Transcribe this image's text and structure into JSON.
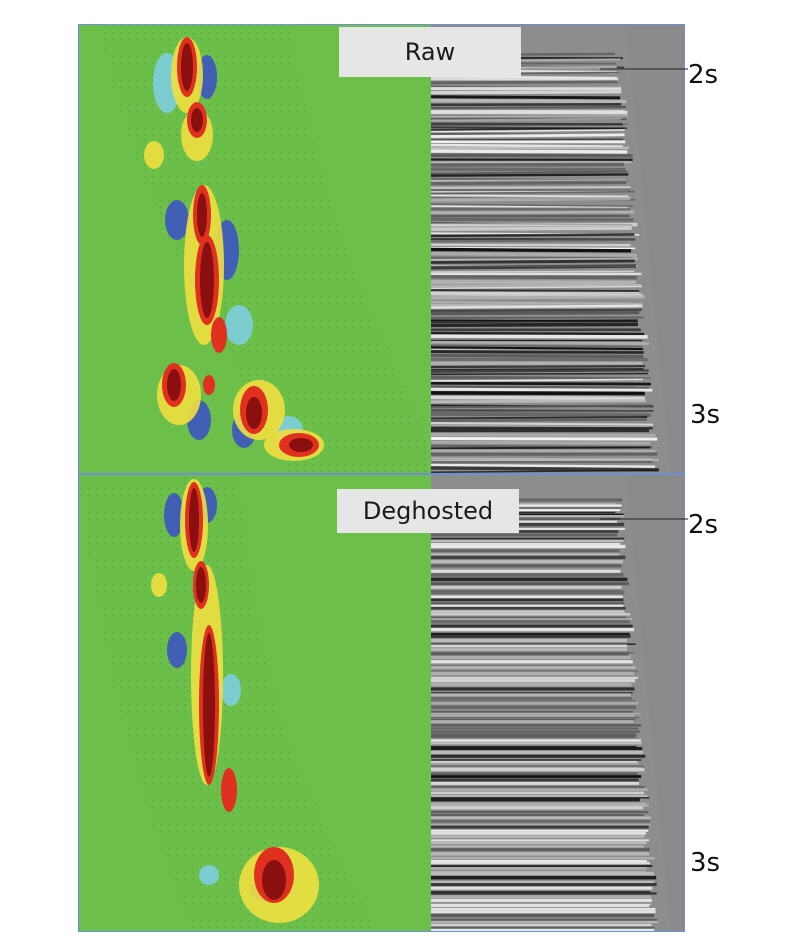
{
  "panels": {
    "raw": {
      "label": "Raw",
      "time_top": "2s",
      "time_bottom": "3s"
    },
    "deghosted": {
      "label": "Deghosted",
      "time_top": "2s",
      "time_bottom": "3s"
    }
  },
  "colors": {
    "background": "#6cc04a",
    "high_amplitude": "#a4161a",
    "mid_amplitude": "#f0e040",
    "low_negative": "#3a4fc8",
    "seismic_gray": "#8d8d8d",
    "frame": "#6f8fd6"
  }
}
